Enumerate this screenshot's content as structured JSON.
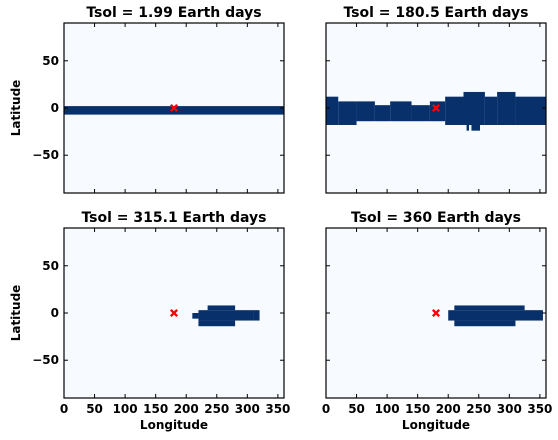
{
  "colors": {
    "background": "#ffffff",
    "plot_background": "#f7fbff",
    "region_fill": "#08306b",
    "marker": "#ff0000",
    "axes": "#000000"
  },
  "chart_data": [
    {
      "type": "heatmap",
      "title": "Tsol = 1.99 Earth days",
      "xlabel": "",
      "ylabel": "Latitude",
      "xlim": [
        0,
        360
      ],
      "ylim": [
        -90,
        90
      ],
      "xticks": [],
      "yticks": [
        50,
        0,
        -50
      ],
      "marker": {
        "x": 180,
        "y": 0,
        "symbol": "x"
      },
      "regions": [
        {
          "x0": 0,
          "x1": 360,
          "y0": -7,
          "y1": 2
        }
      ]
    },
    {
      "type": "heatmap",
      "title": "Tsol = 180.5 Earth days",
      "xlabel": "",
      "ylabel": "",
      "xlim": [
        0,
        360
      ],
      "ylim": [
        -90,
        90
      ],
      "xticks": [],
      "yticks": [],
      "marker": {
        "x": 180,
        "y": 0,
        "symbol": "x"
      },
      "regions": [
        {
          "x0": 0,
          "x1": 20,
          "y0": -18,
          "y1": 12
        },
        {
          "x0": 20,
          "x1": 50,
          "y0": -18,
          "y1": 7
        },
        {
          "x0": 50,
          "x1": 80,
          "y0": -14,
          "y1": 7
        },
        {
          "x0": 80,
          "x1": 105,
          "y0": -14,
          "y1": 3
        },
        {
          "x0": 105,
          "x1": 140,
          "y0": -14,
          "y1": 7
        },
        {
          "x0": 140,
          "x1": 170,
          "y0": -14,
          "y1": 3
        },
        {
          "x0": 170,
          "x1": 195,
          "y0": -14,
          "y1": 7
        },
        {
          "x0": 195,
          "x1": 225,
          "y0": -18,
          "y1": 12
        },
        {
          "x0": 225,
          "x1": 260,
          "y0": -18,
          "y1": 17
        },
        {
          "x0": 260,
          "x1": 280,
          "y0": -18,
          "y1": 12
        },
        {
          "x0": 280,
          "x1": 310,
          "y0": -18,
          "y1": 17
        },
        {
          "x0": 310,
          "x1": 360,
          "y0": -18,
          "y1": 12
        },
        {
          "x0": 230,
          "x1": 234,
          "y0": -24,
          "y1": -18
        },
        {
          "x0": 238,
          "x1": 252,
          "y0": -24,
          "y1": -18
        }
      ]
    },
    {
      "type": "heatmap",
      "title": "Tsol = 315.1 Earth days",
      "xlabel": "Longitude",
      "ylabel": "Latitude",
      "xlim": [
        0,
        360
      ],
      "ylim": [
        -90,
        90
      ],
      "xticks": [
        0,
        50,
        100,
        150,
        200,
        250,
        300,
        350
      ],
      "yticks": [
        50,
        0,
        -50
      ],
      "marker": {
        "x": 180,
        "y": 0,
        "symbol": "x"
      },
      "regions": [
        {
          "x0": 235,
          "x1": 280,
          "y0": 3,
          "y1": 8
        },
        {
          "x0": 220,
          "x1": 310,
          "y0": -8,
          "y1": 3
        },
        {
          "x0": 210,
          "x1": 220,
          "y0": -6,
          "y1": 0
        },
        {
          "x0": 220,
          "x1": 280,
          "y0": -14,
          "y1": -8
        },
        {
          "x0": 310,
          "x1": 320,
          "y0": -8,
          "y1": 3
        }
      ]
    },
    {
      "type": "heatmap",
      "title": "Tsol = 360 Earth days",
      "xlabel": "Longitude",
      "ylabel": "",
      "xlim": [
        0,
        360
      ],
      "ylim": [
        -90,
        90
      ],
      "xticks": [
        0,
        50,
        100,
        150,
        200,
        250,
        300,
        350
      ],
      "yticks": [],
      "marker": {
        "x": 180,
        "y": 0,
        "symbol": "x"
      },
      "regions": [
        {
          "x0": 210,
          "x1": 325,
          "y0": 3,
          "y1": 8
        },
        {
          "x0": 200,
          "x1": 355,
          "y0": -8,
          "y1": 3
        },
        {
          "x0": 210,
          "x1": 310,
          "y0": -14,
          "y1": -8
        }
      ]
    }
  ]
}
